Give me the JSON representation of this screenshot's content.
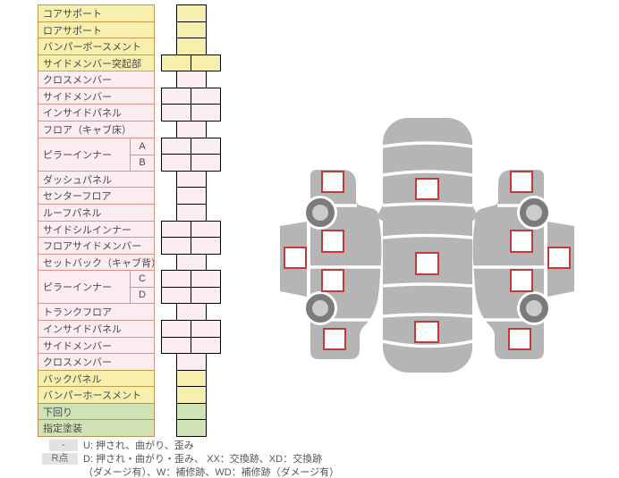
{
  "parts_table": {
    "rows": [
      {
        "label": "コアサポート",
        "type": "yellow",
        "cells": 1
      },
      {
        "label": "ロアサポート",
        "type": "yellow",
        "cells": 1
      },
      {
        "label": "バンパーボースメント",
        "type": "yellow",
        "cells": 1
      },
      {
        "label": "サイドメンバー突起部",
        "type": "yellow",
        "cells": 2
      },
      {
        "label": "クロスメンバー",
        "type": "pink",
        "cells": 1
      },
      {
        "label": "サイドメンバー",
        "type": "pink",
        "cells": 2
      },
      {
        "label": "インサイドパネル",
        "type": "pink",
        "cells": 2
      },
      {
        "label": "フロア（キャブ床）",
        "type": "pink",
        "cells": 1
      },
      {
        "label": "ピラーインナー",
        "type": "pink",
        "cells": 2,
        "subrows": [
          "A",
          "B"
        ]
      },
      {
        "label": "ダッシュパネル",
        "type": "pink",
        "cells": 1
      },
      {
        "label": "センターフロア",
        "type": "pink",
        "cells": 1
      },
      {
        "label": "ルーフパネル",
        "type": "pink",
        "cells": 1
      },
      {
        "label": "サイドシルインナー",
        "type": "pink",
        "cells": 2
      },
      {
        "label": "フロアサイドメンバー",
        "type": "pink",
        "cells": 2
      },
      {
        "label": "セットバック（キャブ背）",
        "type": "pink",
        "cells": 1
      },
      {
        "label": "ピラーインナー",
        "type": "pink",
        "cells": 2,
        "subrows": [
          "C",
          "D"
        ]
      },
      {
        "label": "トランクフロア",
        "type": "pink",
        "cells": 1
      },
      {
        "label": "インサイドパネル",
        "type": "pink",
        "cells": 2
      },
      {
        "label": "サイドメンバー",
        "type": "pink",
        "cells": 2
      },
      {
        "label": "クロスメンバー",
        "type": "pink",
        "cells": 1
      },
      {
        "label": "バックパネル",
        "type": "yellow",
        "cells": 1
      },
      {
        "label": "バンパーホースメント",
        "type": "yellow",
        "cells": 1
      },
      {
        "label": "下回り",
        "type": "green",
        "cells": 1
      },
      {
        "label": "指定塗装",
        "type": "green",
        "cells": 1
      }
    ]
  },
  "legend": {
    "line1_badge": "-",
    "line1_text": "U: 押され、曲がり、歪み",
    "line2_badge": "R点",
    "line2_text": "D: 押され・曲がり・歪み、 XX：交換跡、XD：交換跡",
    "line3_text": "（ダメージ有）、W：補修跡、WD：補修跡（ダメージ有）"
  },
  "diagram": {
    "views": [
      {
        "name": "side-view-left",
        "markers": 5,
        "wheels": 2
      },
      {
        "name": "top-view",
        "markers": 3
      },
      {
        "name": "side-view-right",
        "markers": 5,
        "wheels": 2
      }
    ]
  },
  "colors": {
    "row_yellow_bg": "#f7efae",
    "row_yellow_border": "#c59a4a",
    "row_pink_bg": "#fceef0",
    "row_pink_border": "#dd9188",
    "row_green_bg": "#cfe3b4",
    "row_green_border": "#c58a5a",
    "car_body_gray": "#b5b5b5",
    "wheel_ring_gray": "#7b7b7b",
    "wheel_hub_gray": "#cbcbcb",
    "marker_red": "#c13b3b",
    "legend_badge_bg": "#e2e2e2",
    "text_color": "#4a4a4a"
  }
}
